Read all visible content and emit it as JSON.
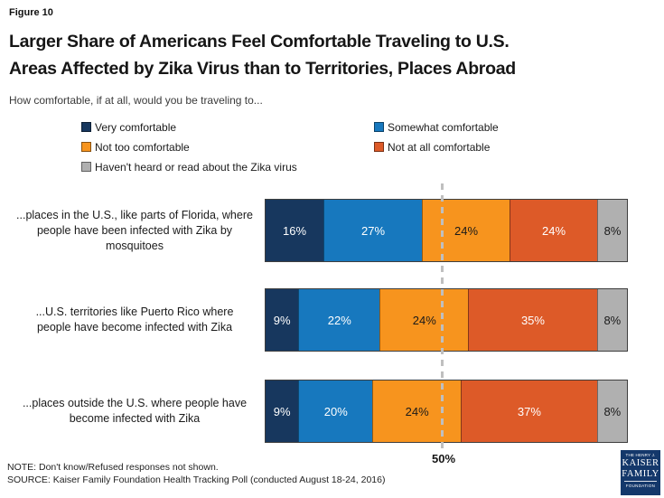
{
  "figure_label": "Figure 10",
  "title": {
    "line1": "Larger Share of Americans Feel Comfortable Traveling to U.S.",
    "line2": "Areas Affected by Zika Virus than to Territories, Places Abroad"
  },
  "subtitle": "How comfortable, if at all, would you be traveling to...",
  "chart_data": {
    "type": "bar",
    "orientation": "horizontal",
    "stacked": true,
    "unit": "%",
    "xlim": [
      0,
      100
    ],
    "grid": false,
    "legend_position": "top",
    "categories": [
      "...places in the U.S., like parts of Florida, where people have been infected with Zika by mosquitoes",
      "...U.S. territories like Puerto Rico where people have become infected with Zika",
      "...places outside the U.S. where people have become infected with Zika"
    ],
    "category_display_lines": [
      [
        "...places in the U.S., like parts of Florida, where",
        "people have been infected with Zika by",
        "mosquitoes"
      ],
      [
        "...U.S. territories like Puerto Rico where",
        "people have become infected with Zika"
      ],
      [
        "...places outside the U.S. where people have",
        "become infected with Zika"
      ]
    ],
    "series": [
      {
        "name": "Very comfortable",
        "color": "#17375E",
        "label_color": "#FFFFFF",
        "values": [
          16,
          9,
          9
        ]
      },
      {
        "name": "Somewhat comfortable",
        "color": "#1778BE",
        "label_color": "#FFFFFF",
        "values": [
          27,
          22,
          20
        ]
      },
      {
        "name": "Not too comfortable",
        "color": "#F7941E",
        "label_color": "#1A1A1A",
        "values": [
          24,
          24,
          24
        ]
      },
      {
        "name": "Not at all comfortable",
        "color": "#DD5A28",
        "label_color": "#FFFFFF",
        "values": [
          24,
          35,
          37
        ]
      },
      {
        "name": "Haven't heard or read about the Zika virus",
        "color": "#B0B0B0",
        "label_color": "#1A1A1A",
        "values": [
          8,
          8,
          8
        ]
      }
    ],
    "value_suffix": "%",
    "reference_line": {
      "value": 50,
      "label": "50%"
    }
  },
  "note": "NOTE: Don't know/Refused responses not shown.",
  "source": "SOURCE: Kaiser Family Foundation Health Tracking Poll (conducted August 18-24, 2016)",
  "logo": {
    "top": "THE HENRY J.",
    "name1": "KAISER",
    "name2": "FAMILY",
    "bottom": "FOUNDATION"
  }
}
